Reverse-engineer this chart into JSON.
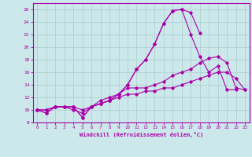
{
  "background_color": "#cce8ea",
  "grid_color": "#aacccc",
  "line_color": "#aa00aa",
  "xlabel": "Windchill (Refroidissement éolien,°C)",
  "xlim": [
    -0.5,
    23.5
  ],
  "ylim": [
    8,
    27
  ],
  "yticks": [
    8,
    10,
    12,
    14,
    16,
    18,
    20,
    22,
    24,
    26
  ],
  "xticks": [
    0,
    1,
    2,
    3,
    4,
    5,
    6,
    7,
    8,
    9,
    10,
    11,
    12,
    13,
    14,
    15,
    16,
    17,
    18,
    19,
    20,
    21,
    22,
    23
  ],
  "lines": [
    {
      "x": [
        0,
        1,
        2,
        3,
        4,
        5,
        6,
        7,
        8,
        9,
        10,
        11,
        12,
        13,
        14,
        15,
        16,
        17,
        18
      ],
      "y": [
        10.0,
        9.5,
        10.5,
        10.5,
        10.5,
        8.8,
        10.5,
        11.0,
        11.5,
        12.5,
        14.0,
        16.5,
        18.0,
        20.5,
        23.8,
        25.8,
        26.0,
        25.5,
        22.2
      ]
    },
    {
      "x": [
        0,
        1,
        2,
        3,
        4,
        5,
        6,
        7,
        8,
        9,
        10,
        11,
        12,
        13,
        14,
        15,
        16,
        17,
        18,
        19,
        20,
        21,
        22
      ],
      "y": [
        10.0,
        9.5,
        10.5,
        10.5,
        10.5,
        8.8,
        10.5,
        11.0,
        11.5,
        12.5,
        14.0,
        16.5,
        18.0,
        20.5,
        23.8,
        25.8,
        26.0,
        22.0,
        18.5,
        16.0,
        17.0,
        13.2,
        13.2
      ]
    },
    {
      "x": [
        0,
        1,
        2,
        3,
        4,
        5,
        6,
        7,
        8,
        9,
        10,
        11,
        12,
        13,
        14,
        15,
        16,
        17,
        18,
        19,
        20,
        21,
        22,
        23
      ],
      "y": [
        10.0,
        10.0,
        10.5,
        10.5,
        10.5,
        10.0,
        10.5,
        11.5,
        12.0,
        12.5,
        13.5,
        13.5,
        13.5,
        14.0,
        14.5,
        15.5,
        16.0,
        16.5,
        17.5,
        18.2,
        18.5,
        17.5,
        13.5,
        13.2
      ]
    },
    {
      "x": [
        0,
        1,
        2,
        3,
        4,
        5,
        6,
        7,
        8,
        9,
        10,
        11,
        12,
        13,
        14,
        15,
        16,
        17,
        18,
        19,
        20,
        21,
        22,
        23
      ],
      "y": [
        10.0,
        10.0,
        10.5,
        10.5,
        10.0,
        9.5,
        10.5,
        11.0,
        11.5,
        12.0,
        12.5,
        12.5,
        13.0,
        13.0,
        13.5,
        13.5,
        14.0,
        14.5,
        15.0,
        15.5,
        16.0,
        16.0,
        15.0,
        13.2
      ]
    }
  ]
}
